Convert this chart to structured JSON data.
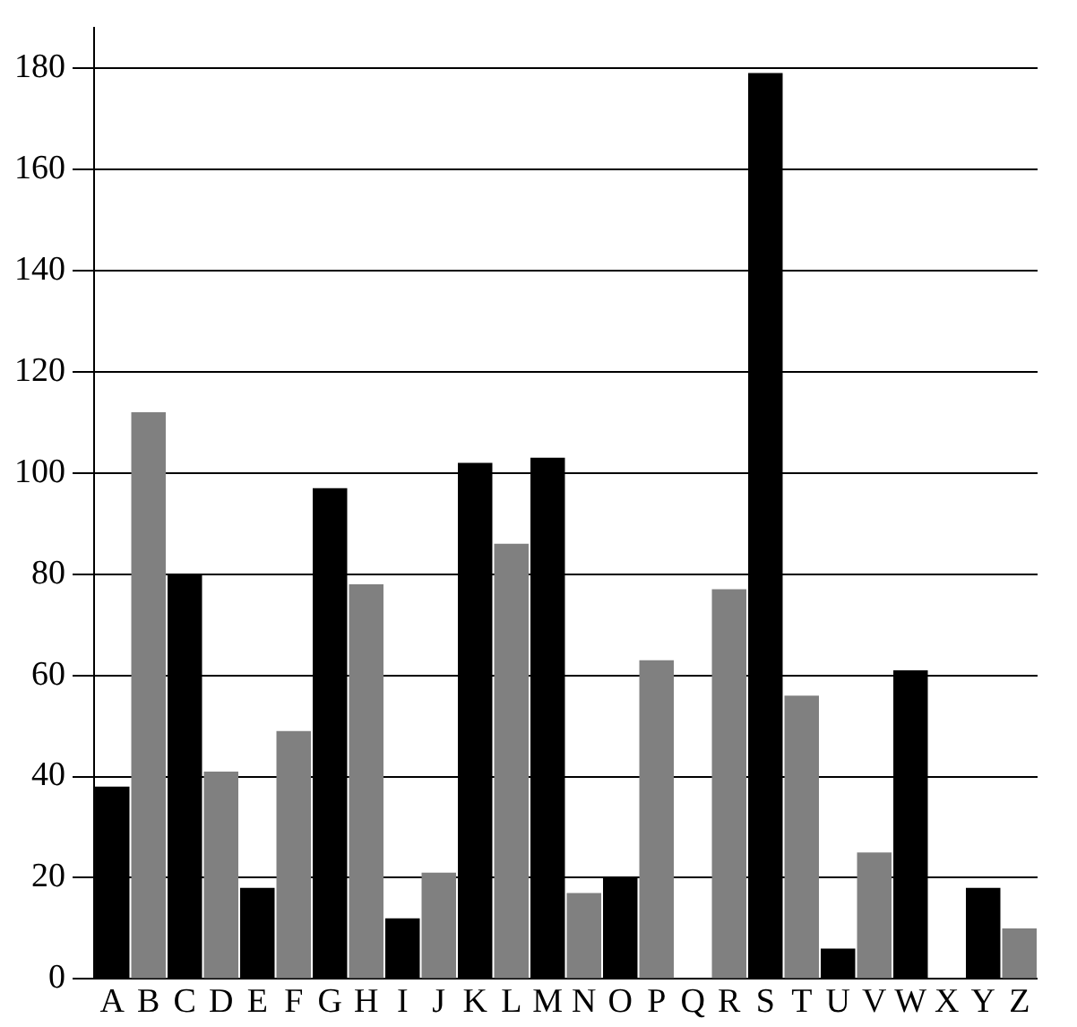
{
  "chart_data": {
    "type": "bar",
    "categories": [
      "A",
      "B",
      "C",
      "D",
      "E",
      "F",
      "G",
      "H",
      "I",
      "J",
      "K",
      "L",
      "M",
      "N",
      "O",
      "P",
      "Q",
      "R",
      "S",
      "T",
      "U",
      "V",
      "W",
      "X",
      "Y",
      "Z"
    ],
    "values": [
      38,
      112,
      80,
      41,
      18,
      49,
      97,
      78,
      12,
      21,
      102,
      86,
      103,
      17,
      20,
      63,
      0,
      77,
      179,
      56,
      6,
      25,
      61,
      0,
      18,
      10
    ],
    "colors": [
      "#000000",
      "#808080",
      "#000000",
      "#808080",
      "#000000",
      "#808080",
      "#000000",
      "#808080",
      "#000000",
      "#808080",
      "#000000",
      "#808080",
      "#000000",
      "#808080",
      "#000000",
      "#808080",
      "#000000",
      "#808080",
      "#000000",
      "#808080",
      "#000000",
      "#808080",
      "#000000",
      "#808080",
      "#000000",
      "#808080"
    ],
    "ylim": [
      0,
      188
    ],
    "yticks": [
      0,
      20,
      40,
      60,
      80,
      100,
      120,
      140,
      160,
      180
    ],
    "grid": "y",
    "legend": false
  }
}
